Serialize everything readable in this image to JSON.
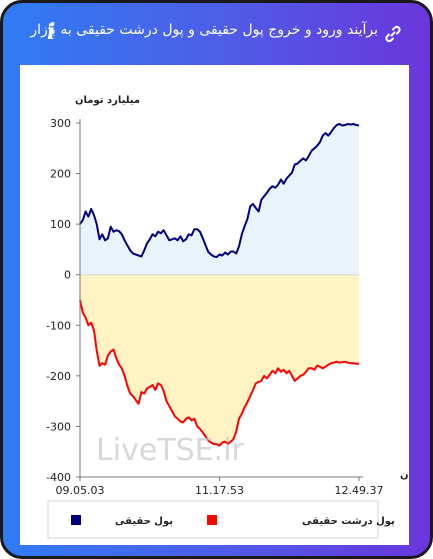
{
  "header": {
    "title": "برآیند ورود و خروج پول حقیقی و پول درشت حقیقی به بازار",
    "info_label": "i",
    "link_icon": "link-icon",
    "info_icon": "info-icon"
  },
  "watermark": "LiveTSE.ir",
  "chart_data": {
    "type": "area",
    "ylabel": "میلیارد تومان",
    "xlabel": "زمان",
    "ylim": [
      -400,
      300
    ],
    "yticks": [
      300,
      200,
      100,
      0,
      -100,
      -200,
      -300,
      -400
    ],
    "xlim": [
      0,
      100
    ],
    "xticks": [
      {
        "x": 0,
        "label": "09.05.03"
      },
      {
        "x": 50,
        "label": "11.17.53"
      },
      {
        "x": 100,
        "label": "12.49.37"
      }
    ],
    "grid": false,
    "legend_position": "bottom",
    "series": [
      {
        "name": "پول حقیقی",
        "color": "#000080",
        "fill": "#e8f3fb",
        "x": [
          0,
          1,
          2,
          3,
          4,
          5,
          6,
          7,
          8,
          9,
          10,
          11,
          12,
          13,
          14,
          15,
          16,
          17,
          18,
          19,
          20,
          21,
          22,
          23,
          24,
          25,
          26,
          27,
          28,
          29,
          30,
          31,
          32,
          33,
          34,
          35,
          36,
          37,
          38,
          39,
          40,
          41,
          42,
          43,
          44,
          45,
          46,
          47,
          48,
          49,
          50,
          51,
          52,
          53,
          54,
          55,
          56,
          57,
          58,
          59,
          60,
          61,
          62,
          63,
          64,
          65,
          66,
          67,
          68,
          69,
          70,
          71,
          72,
          73,
          74,
          75,
          76,
          77,
          78,
          79,
          80,
          81,
          82,
          83,
          84,
          85,
          86,
          87,
          88,
          89,
          90,
          91,
          92,
          93,
          94,
          95,
          96,
          97,
          98,
          99,
          100
        ],
        "values": [
          100,
          108,
          125,
          115,
          130,
          118,
          100,
          70,
          80,
          68,
          72,
          95,
          85,
          88,
          86,
          80,
          68,
          58,
          48,
          42,
          40,
          38,
          36,
          48,
          62,
          70,
          80,
          76,
          85,
          82,
          88,
          78,
          68,
          70,
          72,
          68,
          76,
          66,
          70,
          80,
          78,
          90,
          90,
          85,
          72,
          58,
          45,
          40,
          36,
          35,
          40,
          38,
          44,
          40,
          46,
          46,
          42,
          56,
          80,
          96,
          110,
          135,
          140,
          132,
          125,
          148,
          155,
          162,
          170,
          175,
          172,
          178,
          188,
          180,
          190,
          196,
          202,
          218,
          220,
          225,
          230,
          226,
          235,
          245,
          250,
          255,
          262,
          275,
          280,
          275,
          282,
          290,
          296,
          298,
          295,
          296,
          298,
          297,
          298,
          296,
          295
        ]
      },
      {
        "name": "پول درشت حقیقی",
        "color": "#ff0000",
        "fill": "#fff3c4",
        "x": [
          0,
          1,
          2,
          3,
          4,
          5,
          6,
          7,
          8,
          9,
          10,
          11,
          12,
          13,
          14,
          15,
          16,
          17,
          18,
          19,
          20,
          21,
          22,
          23,
          24,
          25,
          26,
          27,
          28,
          29,
          30,
          31,
          32,
          33,
          34,
          35,
          36,
          37,
          38,
          39,
          40,
          41,
          42,
          43,
          44,
          45,
          46,
          47,
          48,
          49,
          50,
          51,
          52,
          53,
          54,
          55,
          56,
          57,
          58,
          59,
          60,
          61,
          62,
          63,
          64,
          65,
          66,
          67,
          68,
          69,
          70,
          71,
          72,
          73,
          74,
          75,
          76,
          77,
          78,
          79,
          80,
          81,
          82,
          83,
          84,
          85,
          86,
          87,
          88,
          89,
          90,
          91,
          92,
          93,
          94,
          95,
          96,
          97,
          98,
          99,
          100
        ],
        "values": [
          -50,
          -75,
          -85,
          -100,
          -95,
          -110,
          -150,
          -180,
          -175,
          -178,
          -160,
          -152,
          -148,
          -165,
          -178,
          -185,
          -200,
          -220,
          -235,
          -240,
          -248,
          -255,
          -232,
          -235,
          -225,
          -222,
          -218,
          -228,
          -215,
          -218,
          -230,
          -250,
          -260,
          -270,
          -280,
          -285,
          -290,
          -292,
          -285,
          -282,
          -288,
          -285,
          -300,
          -305,
          -312,
          -320,
          -328,
          -332,
          -335,
          -335,
          -338,
          -332,
          -330,
          -335,
          -330,
          -325,
          -310,
          -285,
          -275,
          -262,
          -252,
          -240,
          -228,
          -215,
          -212,
          -210,
          -200,
          -205,
          -198,
          -190,
          -195,
          -185,
          -192,
          -188,
          -195,
          -190,
          -200,
          -210,
          -205,
          -200,
          -198,
          -192,
          -185,
          -185,
          -188,
          -180,
          -182,
          -185,
          -182,
          -178,
          -175,
          -174,
          -172,
          -174,
          -173,
          -172,
          -174,
          -175,
          -175,
          -176,
          -176
        ]
      }
    ]
  }
}
